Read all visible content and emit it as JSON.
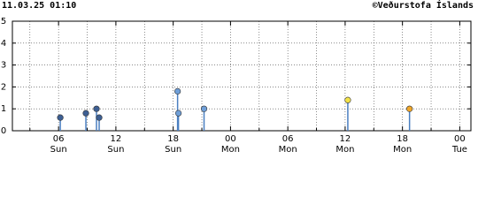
{
  "chart_data": {
    "type": "stem",
    "title": "11.03.25 01:10",
    "credit": "©Veðurstofa Íslands",
    "xlim": [
      1.1667,
      49.1667
    ],
    "xticks": [
      {
        "value": 6,
        "label": "06"
      },
      {
        "value": 12,
        "label": "12"
      },
      {
        "value": 18,
        "label": "18"
      },
      {
        "value": 24,
        "label": "00"
      },
      {
        "value": 30,
        "label": "06"
      },
      {
        "value": 36,
        "label": "12"
      },
      {
        "value": 42,
        "label": "18"
      },
      {
        "value": 48,
        "label": "00"
      }
    ],
    "xtick_days": [
      "Sun",
      "Sun",
      "Sun",
      "Mon",
      "Mon",
      "Mon",
      "Mon",
      "Tue"
    ],
    "xminor": [
      3,
      9,
      15,
      21,
      27,
      33,
      39,
      45
    ],
    "ylim": [
      0,
      5
    ],
    "yticks": [
      0,
      1,
      2,
      3,
      4,
      5
    ],
    "grid": true,
    "stem_color": "#4a7fc1",
    "x": [
      6.18,
      8.86,
      9.97,
      10.25,
      18.46,
      18.55,
      21.23,
      36.28,
      42.74
    ],
    "values": [
      0.6,
      0.8,
      1.0,
      0.6,
      1.8,
      0.8,
      1.0,
      1.4,
      1.0
    ],
    "colors": [
      "#3d5f93",
      "#3d5f93",
      "#3d5f93",
      "#3d5f93",
      "#6f9fd8",
      "#6f9fd8",
      "#6f9fd8",
      "#f2e24a",
      "#f0a72a"
    ]
  }
}
